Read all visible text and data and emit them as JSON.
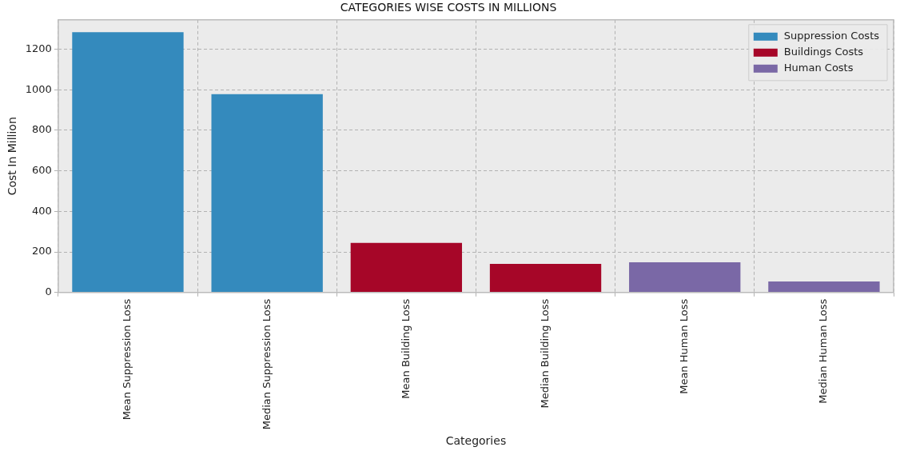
{
  "chart_data": {
    "type": "bar",
    "title": "CATEGORIES WISE COSTS IN MILLIONS",
    "xlabel": "Categories",
    "ylabel": "Cost In Million",
    "categories": [
      "Mean Suppression Loss",
      "Median Suppression Loss",
      "Mean Building Loss",
      "Median Building Loss",
      "Mean Human Loss",
      "Median Human Loss"
    ],
    "series": [
      {
        "name": "Suppression Costs",
        "color": "#348abd",
        "values": [
          1284,
          978,
          null,
          null,
          null,
          null
        ]
      },
      {
        "name": "Buildings Costs",
        "color": "#a60628",
        "values": [
          null,
          null,
          245,
          141,
          null,
          null
        ]
      },
      {
        "name": "Human Costs",
        "color": "#7a68a6",
        "values": [
          null,
          null,
          null,
          null,
          149,
          54
        ]
      }
    ],
    "ylim": [
      0,
      1345
    ],
    "yticks": [
      0,
      200,
      400,
      600,
      800,
      1000,
      1200
    ],
    "grid": true,
    "legend": "top right"
  }
}
